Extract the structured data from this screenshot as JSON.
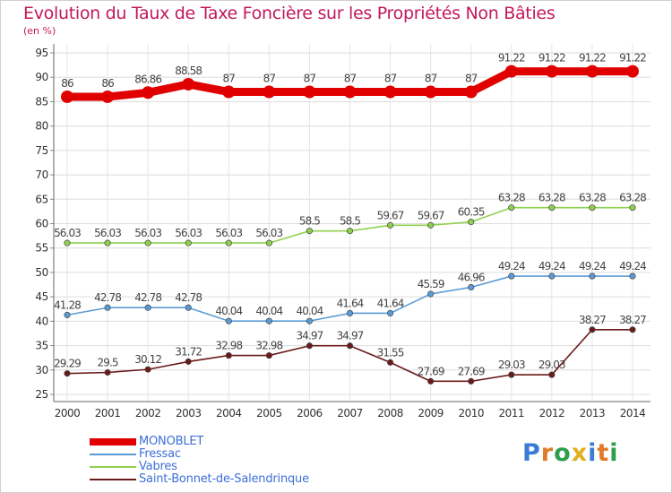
{
  "title": "Evolution du Taux de Taxe Foncière sur les Propriétés Non Bâties",
  "subtitle": "(en %)",
  "logo": "Proxiti",
  "chart_data": {
    "type": "line",
    "title": "Evolution du Taux de Taxe Foncière sur les Propriétés Non Bâties",
    "subtitle": "(en %)",
    "xlabel": "",
    "ylabel": "",
    "ylim": [
      25,
      95
    ],
    "yticks": [
      25,
      30,
      35,
      40,
      45,
      50,
      55,
      60,
      65,
      70,
      75,
      80,
      85,
      90,
      95
    ],
    "grid": true,
    "legend_position": "bottom-left",
    "x": [
      "2000",
      "2001",
      "2002",
      "2003",
      "2004",
      "2005",
      "2006",
      "2007",
      "2008",
      "2009",
      "2010",
      "2011",
      "2012",
      "2013",
      "2014"
    ],
    "series": [
      {
        "name": "MONOBLET",
        "color": "#e00000",
        "values": [
          86,
          86,
          86.86,
          88.58,
          87,
          87,
          87,
          87,
          87,
          87,
          87,
          91.22,
          91.22,
          91.22,
          91.22
        ],
        "labels": [
          "86",
          "86",
          "86.86",
          "88.58",
          "87",
          "87",
          "87",
          "87",
          "87",
          "87",
          "87",
          "91.22",
          "91.22",
          "91.22",
          "91.22"
        ]
      },
      {
        "name": "Fressac",
        "color": "#5b9bd5",
        "values": [
          41.28,
          42.78,
          42.78,
          42.78,
          40.04,
          40.04,
          40.04,
          41.64,
          41.64,
          45.59,
          46.96,
          49.24,
          49.24,
          49.24,
          49.24
        ],
        "labels": [
          "41.28",
          "42.78",
          "42.78",
          "42.78",
          "40.04",
          "40.04",
          "40.04",
          "41.64",
          "41.64",
          "45.59",
          "46.96",
          "49.24",
          "49.24",
          "49.24",
          "49.24"
        ]
      },
      {
        "name": "Vabres",
        "color": "#8fd14f",
        "values": [
          56.03,
          56.03,
          56.03,
          56.03,
          56.03,
          56.03,
          58.5,
          58.5,
          59.67,
          59.67,
          60.35,
          63.28,
          63.28,
          63.28,
          63.28
        ],
        "labels": [
          "56.03",
          "56.03",
          "56.03",
          "56.03",
          "56.03",
          "56.03",
          "58.5",
          "58.5",
          "59.67",
          "59.67",
          "60.35",
          "63.28",
          "63.28",
          "63.28",
          "63.28"
        ]
      },
      {
        "name": "Saint-Bonnet-de-Salendrinque",
        "color": "#6b1a1a",
        "values": [
          29.29,
          29.5,
          30.12,
          31.72,
          32.98,
          32.98,
          34.97,
          34.97,
          31.55,
          27.69,
          27.69,
          29.03,
          29.03,
          38.27,
          38.27
        ],
        "labels": [
          "29.29",
          "29.5",
          "30.12",
          "31.72",
          "32.98",
          "32.98",
          "34.97",
          "34.97",
          "31.55",
          "27.69",
          "27.69",
          "29.03",
          "29.03",
          "38.27",
          "38.27"
        ]
      }
    ]
  }
}
